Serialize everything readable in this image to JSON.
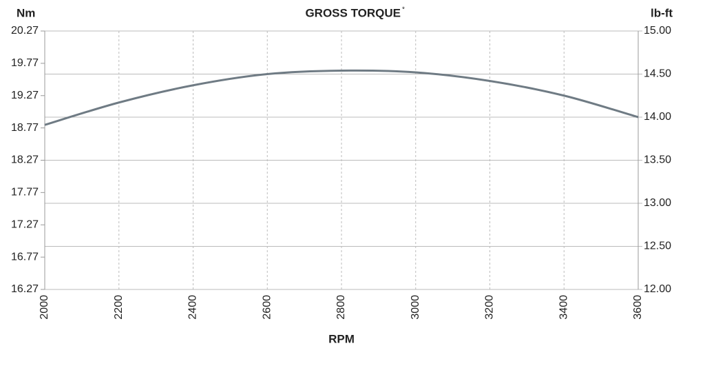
{
  "chart_data": {
    "type": "line",
    "title": "GROSS TORQUE",
    "title_mark": "*",
    "y_label": "Nm",
    "y2_label": "lb-ft",
    "x_label": "RPM",
    "x": [
      2000,
      2200,
      2400,
      2600,
      2800,
      3000,
      3200,
      3400,
      3600
    ],
    "series": [
      {
        "name": "Gross torque",
        "color": "#6f7b84",
        "axis": "y2",
        "values": [
          13.91,
          14.17,
          14.37,
          14.5,
          14.54,
          14.52,
          14.42,
          14.25,
          14.0
        ]
      }
    ],
    "xlim": [
      2000,
      3600
    ],
    "xticks": [
      2000,
      2200,
      2400,
      2600,
      2800,
      3000,
      3200,
      3400,
      3600
    ],
    "ylim": [
      16.27,
      20.27
    ],
    "yticks": [
      16.27,
      16.77,
      17.27,
      17.77,
      18.27,
      18.77,
      19.27,
      19.77,
      20.27
    ],
    "y2lim": [
      12,
      15
    ],
    "y2ticks": [
      {
        "value": 12,
        "label": "12.00"
      },
      {
        "value": 12.5,
        "label": "12.50"
      },
      {
        "value": 13,
        "label": "13.00"
      },
      {
        "value": 13.5,
        "label": "13.50"
      },
      {
        "value": 14,
        "label": "14.00"
      },
      {
        "value": 14.5,
        "label": "14.50"
      },
      {
        "value": 15,
        "label": "15.00"
      }
    ],
    "grid": true
  }
}
